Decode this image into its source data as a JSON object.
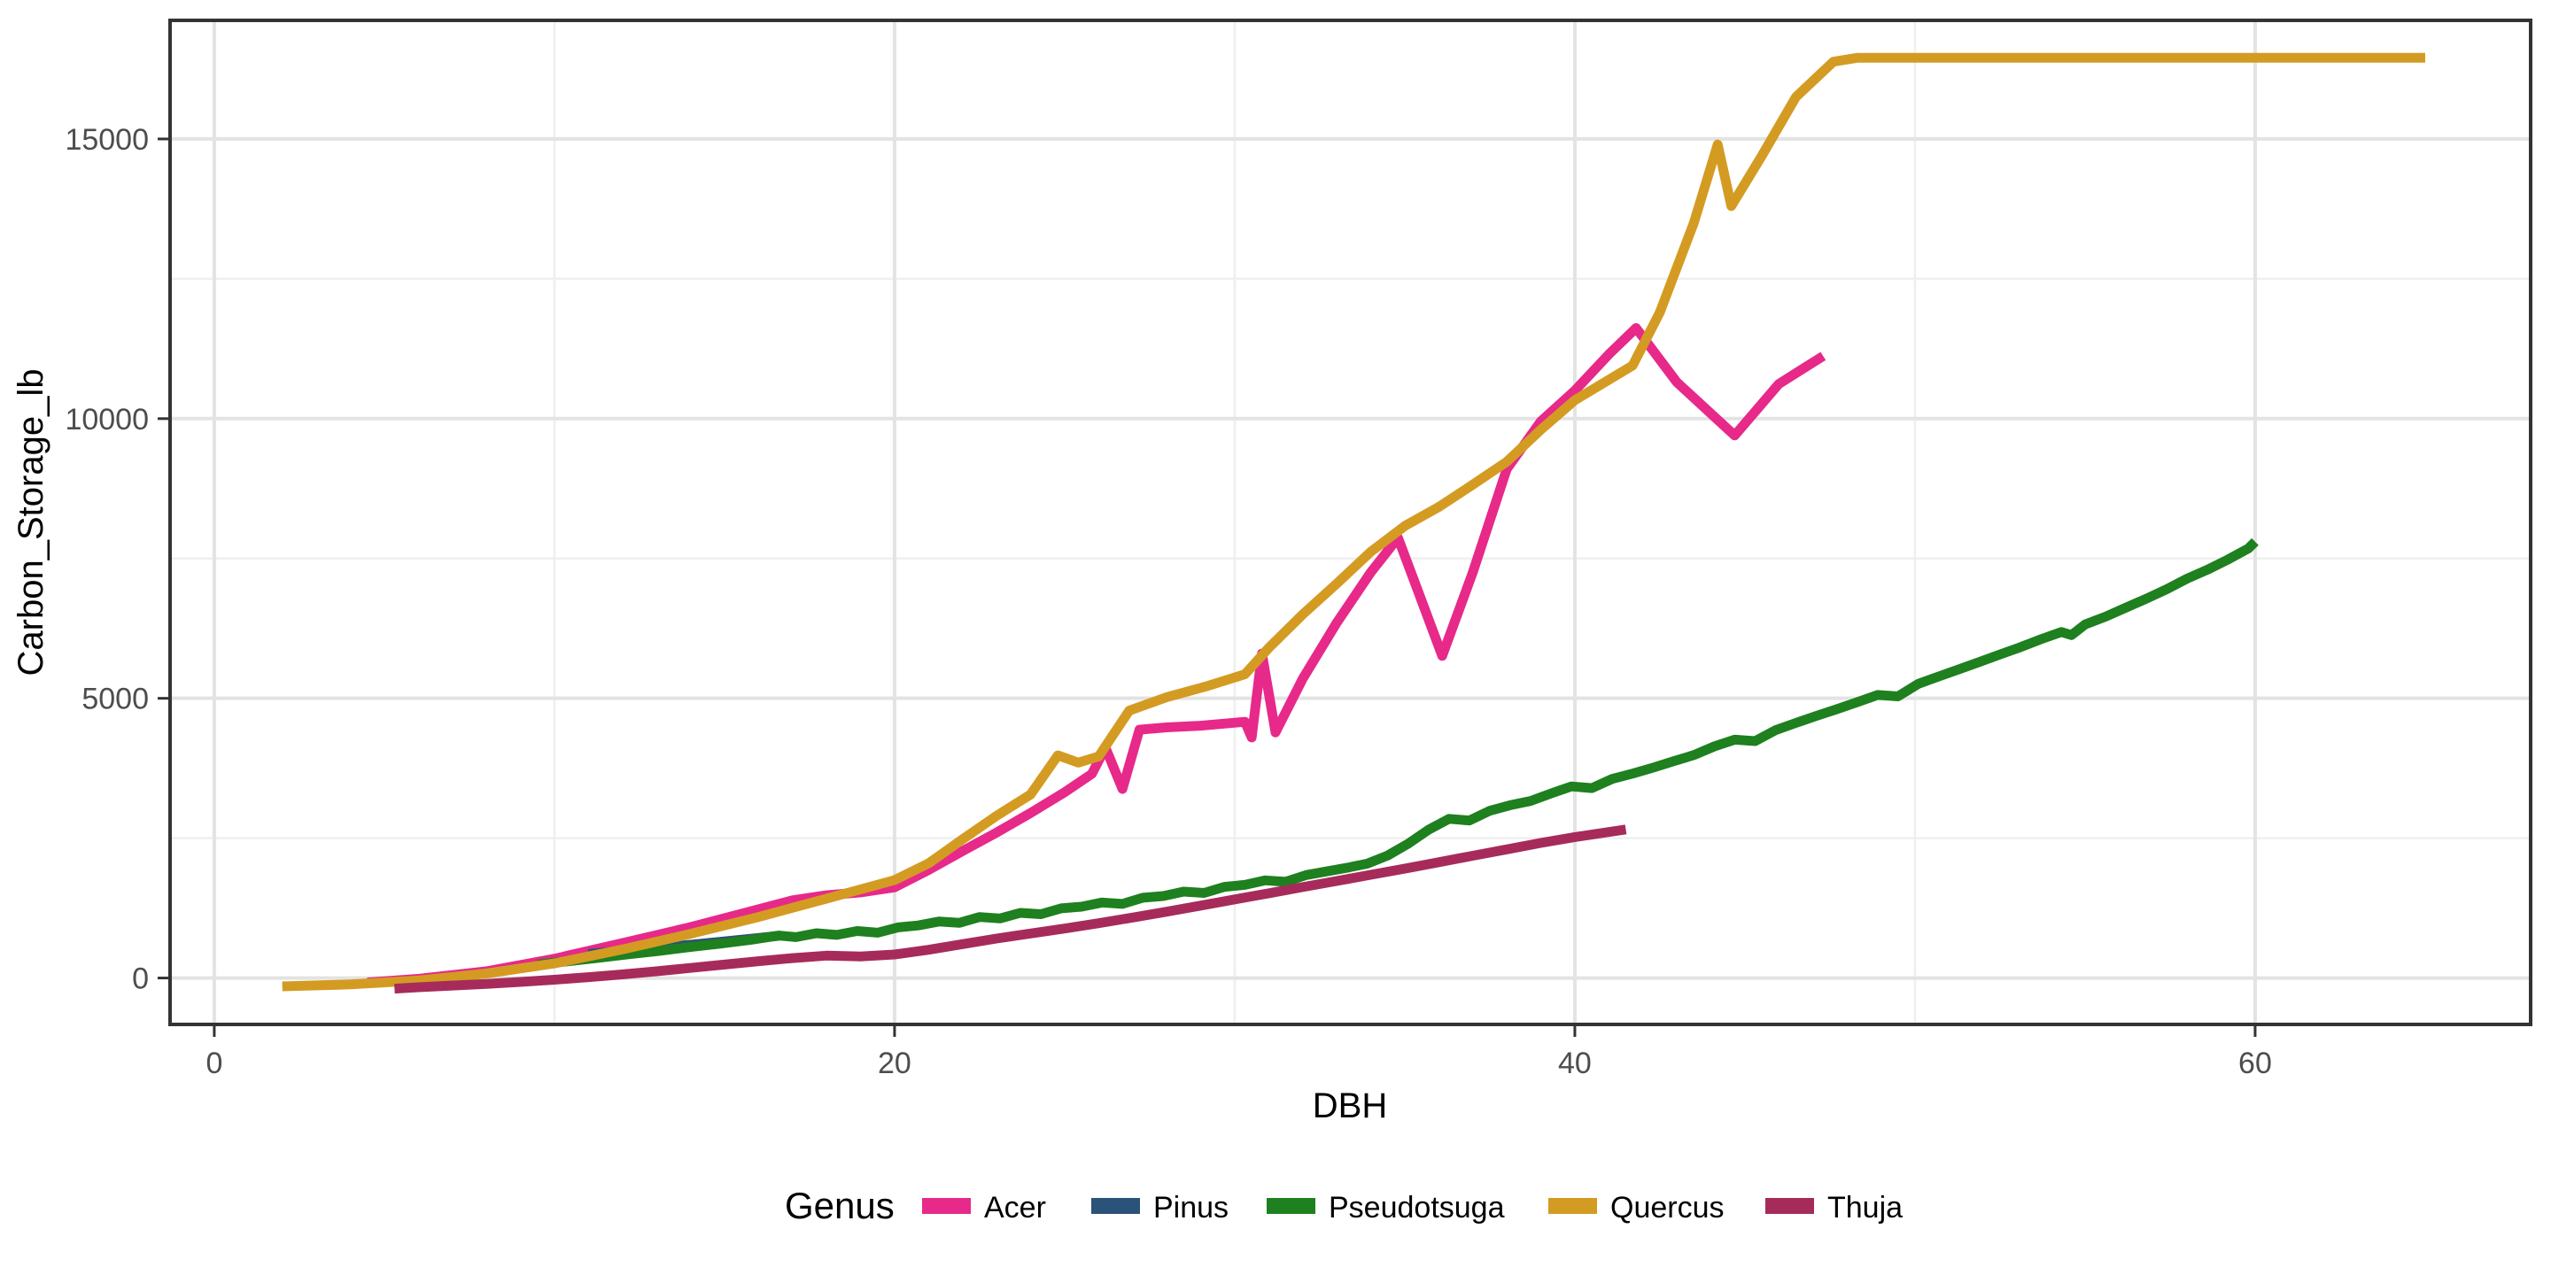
{
  "chart_data": {
    "type": "line",
    "title": "",
    "xlabel": "DBH",
    "ylabel": "Carbon_Storage_lb",
    "legend_title": "Genus",
    "legend_position": "bottom",
    "grid": true,
    "panel_border_color": "#333333",
    "grid_major_color": "#e3e3e3",
    "grid_minor_color": "#efefef",
    "tick_text_color": "#4d4d4d",
    "x_domain": [
      -1.3,
      68.1
    ],
    "y_domain": [
      -830,
      17120
    ],
    "x_ticks": [
      0,
      20,
      40,
      60
    ],
    "x_tick_labels": [
      "0",
      "20",
      "40",
      "60"
    ],
    "x_minor_ticks": [
      10,
      30,
      50
    ],
    "y_ticks": [
      0,
      5000,
      10000,
      15000
    ],
    "y_tick_labels": [
      "0",
      "5000",
      "10000",
      "15000"
    ],
    "y_minor_ticks": [
      2500,
      7500,
      12500
    ],
    "series": [
      {
        "name": "Acer",
        "color": "#E7298A",
        "points": [
          [
            4.5,
            -80
          ],
          [
            6,
            -15
          ],
          [
            8,
            120
          ],
          [
            10,
            345
          ],
          [
            12,
            625
          ],
          [
            14,
            910
          ],
          [
            16,
            1230
          ],
          [
            17,
            1390
          ],
          [
            18,
            1480
          ],
          [
            19,
            1530
          ],
          [
            20,
            1620
          ],
          [
            21,
            1930
          ],
          [
            22,
            2270
          ],
          [
            23,
            2600
          ],
          [
            24,
            2950
          ],
          [
            25,
            3320
          ],
          [
            25.8,
            3650
          ],
          [
            26.2,
            4120
          ],
          [
            26.7,
            3380
          ],
          [
            27.2,
            4440
          ],
          [
            28,
            4480
          ],
          [
            29,
            4510
          ],
          [
            30.3,
            4580
          ],
          [
            30.5,
            4300
          ],
          [
            30.8,
            5800
          ],
          [
            31.2,
            4390
          ],
          [
            32,
            5350
          ],
          [
            33,
            6350
          ],
          [
            34,
            7250
          ],
          [
            34.8,
            7870
          ],
          [
            35.4,
            6900
          ],
          [
            36.1,
            5760
          ],
          [
            37,
            7250
          ],
          [
            38,
            9100
          ],
          [
            39,
            9950
          ],
          [
            40,
            10500
          ],
          [
            41,
            11150
          ],
          [
            41.8,
            11620
          ],
          [
            43,
            10650
          ],
          [
            44.7,
            9700
          ],
          [
            46,
            10620
          ],
          [
            47.3,
            11120
          ]
        ]
      },
      {
        "name": "Pinus",
        "color": "#2B5278",
        "points": [
          [
            11,
            430
          ],
          [
            12,
            485
          ],
          [
            13,
            540
          ],
          [
            14,
            595
          ],
          [
            15,
            655
          ],
          [
            16,
            715
          ],
          [
            16.6,
            755
          ]
        ]
      },
      {
        "name": "Pseudotsuga",
        "color": "#1E801E",
        "points": [
          [
            9.5,
            240
          ],
          [
            10.4,
            300
          ],
          [
            11.3,
            360
          ],
          [
            12.2,
            425
          ],
          [
            13.1,
            485
          ],
          [
            14,
            555
          ],
          [
            14.9,
            615
          ],
          [
            15.8,
            685
          ],
          [
            16.6,
            760
          ],
          [
            17.1,
            730
          ],
          [
            17.7,
            800
          ],
          [
            18.3,
            770
          ],
          [
            18.9,
            840
          ],
          [
            19.5,
            810
          ],
          [
            20.1,
            905
          ],
          [
            20.7,
            940
          ],
          [
            21.3,
            1010
          ],
          [
            21.9,
            985
          ],
          [
            22.5,
            1090
          ],
          [
            23.1,
            1065
          ],
          [
            23.7,
            1165
          ],
          [
            24.3,
            1140
          ],
          [
            24.9,
            1245
          ],
          [
            25.5,
            1275
          ],
          [
            26.1,
            1350
          ],
          [
            26.7,
            1325
          ],
          [
            27.3,
            1435
          ],
          [
            27.9,
            1465
          ],
          [
            28.5,
            1545
          ],
          [
            29.1,
            1520
          ],
          [
            29.7,
            1630
          ],
          [
            30.3,
            1665
          ],
          [
            30.9,
            1745
          ],
          [
            31.5,
            1720
          ],
          [
            32.1,
            1840
          ],
          [
            32.7,
            1905
          ],
          [
            33.3,
            1970
          ],
          [
            33.9,
            2045
          ],
          [
            34.5,
            2190
          ],
          [
            35.1,
            2400
          ],
          [
            35.7,
            2650
          ],
          [
            36.3,
            2845
          ],
          [
            36.9,
            2815
          ],
          [
            37.5,
            2990
          ],
          [
            38.1,
            3090
          ],
          [
            38.7,
            3165
          ],
          [
            39.3,
            3300
          ],
          [
            39.9,
            3425
          ],
          [
            40.5,
            3395
          ],
          [
            41.1,
            3560
          ],
          [
            41.7,
            3655
          ],
          [
            42.3,
            3760
          ],
          [
            42.9,
            3875
          ],
          [
            43.5,
            3985
          ],
          [
            44.1,
            4140
          ],
          [
            44.7,
            4260
          ],
          [
            45.3,
            4235
          ],
          [
            45.9,
            4430
          ],
          [
            46.5,
            4560
          ],
          [
            47.1,
            4685
          ],
          [
            47.7,
            4805
          ],
          [
            48.3,
            4930
          ],
          [
            48.9,
            5060
          ],
          [
            49.5,
            5035
          ],
          [
            50.1,
            5260
          ],
          [
            50.7,
            5390
          ],
          [
            51.3,
            5520
          ],
          [
            51.9,
            5650
          ],
          [
            52.5,
            5785
          ],
          [
            53.1,
            5915
          ],
          [
            53.7,
            6055
          ],
          [
            54.3,
            6185
          ],
          [
            54.6,
            6130
          ],
          [
            55,
            6320
          ],
          [
            55.6,
            6460
          ],
          [
            56.2,
            6620
          ],
          [
            56.8,
            6780
          ],
          [
            57.4,
            6950
          ],
          [
            58,
            7140
          ],
          [
            58.6,
            7300
          ],
          [
            59.2,
            7480
          ],
          [
            59.8,
            7680
          ],
          [
            60,
            7800
          ]
        ]
      },
      {
        "name": "Quercus",
        "color": "#D49B23",
        "points": [
          [
            2,
            -150
          ],
          [
            4,
            -115
          ],
          [
            6,
            -45
          ],
          [
            8,
            80
          ],
          [
            10,
            260
          ],
          [
            12,
            510
          ],
          [
            14,
            790
          ],
          [
            16,
            1090
          ],
          [
            18,
            1420
          ],
          [
            20,
            1750
          ],
          [
            21,
            2050
          ],
          [
            22,
            2480
          ],
          [
            23,
            2900
          ],
          [
            24,
            3280
          ],
          [
            24.8,
            3980
          ],
          [
            25.4,
            3850
          ],
          [
            26,
            3960
          ],
          [
            26.9,
            4780
          ],
          [
            28,
            5020
          ],
          [
            29.2,
            5220
          ],
          [
            30.3,
            5430
          ],
          [
            31,
            5900
          ],
          [
            32,
            6500
          ],
          [
            33,
            7050
          ],
          [
            34,
            7620
          ],
          [
            35,
            8080
          ],
          [
            36,
            8420
          ],
          [
            37,
            8820
          ],
          [
            38,
            9230
          ],
          [
            39,
            9800
          ],
          [
            40,
            10330
          ],
          [
            41.7,
            10950
          ],
          [
            42.5,
            11900
          ],
          [
            43.5,
            13500
          ],
          [
            44.2,
            14900
          ],
          [
            44.6,
            13800
          ],
          [
            45.5,
            14700
          ],
          [
            46.5,
            15750
          ],
          [
            47.6,
            16380
          ],
          [
            48.3,
            16450
          ],
          [
            65,
            16450
          ]
        ]
      },
      {
        "name": "Thuja",
        "color": "#A62B5B",
        "points": [
          [
            5.3,
            -190
          ],
          [
            6,
            -165
          ],
          [
            7,
            -135
          ],
          [
            8,
            -105
          ],
          [
            9,
            -70
          ],
          [
            10,
            -30
          ],
          [
            11,
            15
          ],
          [
            12,
            65
          ],
          [
            13,
            120
          ],
          [
            14,
            180
          ],
          [
            15,
            240
          ],
          [
            16,
            300
          ],
          [
            17,
            355
          ],
          [
            18,
            400
          ],
          [
            19,
            385
          ],
          [
            20,
            420
          ],
          [
            21,
            505
          ],
          [
            22,
            605
          ],
          [
            23,
            705
          ],
          [
            24,
            795
          ],
          [
            25,
            885
          ],
          [
            26,
            980
          ],
          [
            27,
            1080
          ],
          [
            28,
            1185
          ],
          [
            29,
            1295
          ],
          [
            30,
            1405
          ],
          [
            31,
            1515
          ],
          [
            32,
            1625
          ],
          [
            33,
            1735
          ],
          [
            34,
            1845
          ],
          [
            35,
            1955
          ],
          [
            36,
            2070
          ],
          [
            37,
            2185
          ],
          [
            38,
            2300
          ],
          [
            39,
            2415
          ],
          [
            40,
            2520
          ],
          [
            41,
            2610
          ],
          [
            41.5,
            2655
          ]
        ]
      }
    ]
  }
}
